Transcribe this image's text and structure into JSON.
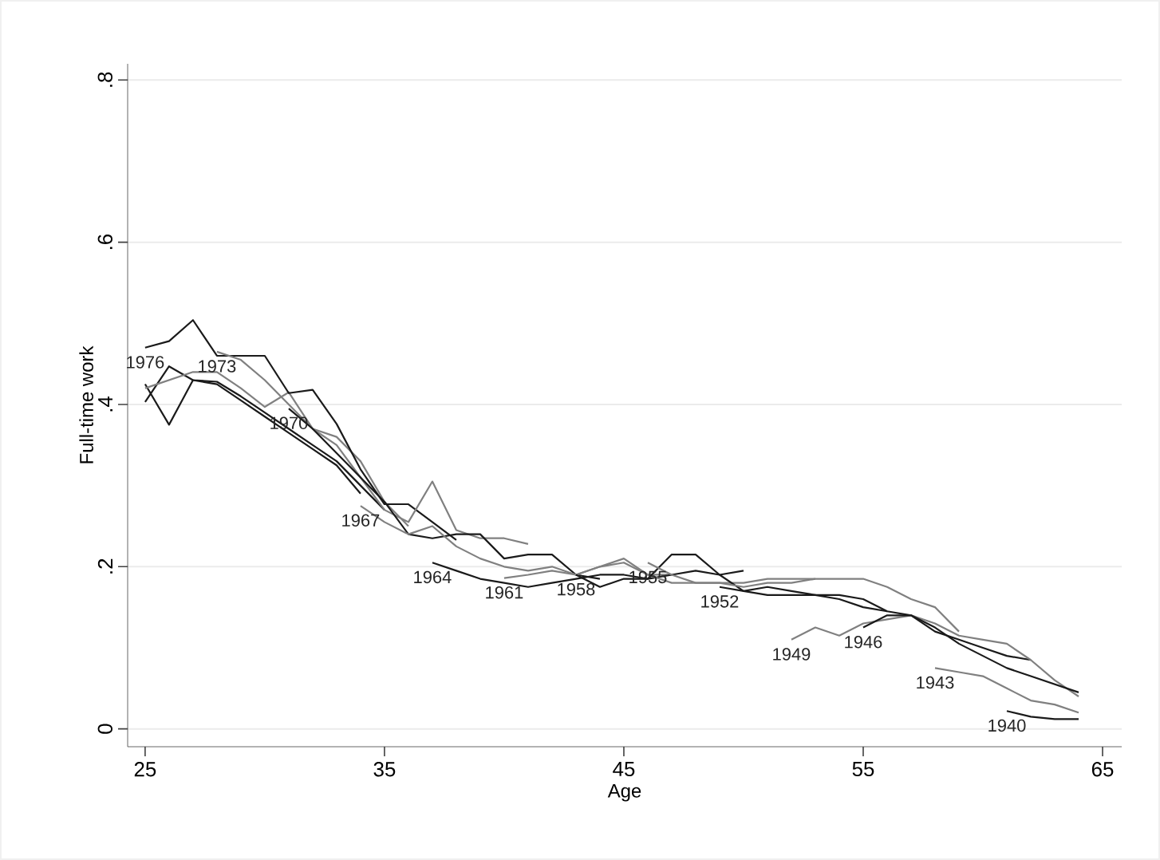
{
  "chart_data": {
    "type": "line",
    "xlabel": "Age",
    "ylabel": "Full-time work",
    "xlim": [
      24.27,
      65.8
    ],
    "ylim": [
      -0.022,
      0.82
    ],
    "xticks": [
      25,
      35,
      45,
      55,
      65
    ],
    "yticks": [
      {
        "value": 0,
        "label": "0"
      },
      {
        "value": 0.2,
        "label": ".2"
      },
      {
        "value": 0.4,
        "label": ".4"
      },
      {
        "value": 0.6,
        "label": ".6"
      },
      {
        "value": 0.8,
        "label": ".8"
      }
    ],
    "grid": "y",
    "series": [
      {
        "color": "#1a1a1a",
        "x": [
          25,
          26,
          27,
          28,
          29,
          30,
          31,
          32,
          33,
          34,
          35
        ],
        "values": [
          0.403,
          0.447,
          0.43,
          0.428,
          0.41,
          0.39,
          0.37,
          0.35,
          0.33,
          0.3,
          0.27
        ]
      },
      {
        "color": "#1a1a1a",
        "x": [
          25,
          26,
          27,
          28,
          29,
          30,
          31,
          32,
          33,
          34
        ],
        "values": [
          0.425,
          0.375,
          0.43,
          0.425,
          0.405,
          0.385,
          0.365,
          0.345,
          0.325,
          0.29
        ]
      },
      {
        "color": "#808080",
        "x": [
          25,
          26,
          27,
          28,
          29,
          30,
          31,
          32,
          33,
          34,
          35,
          36
        ],
        "values": [
          0.42,
          0.43,
          0.44,
          0.44,
          0.42,
          0.397,
          0.415,
          0.37,
          0.36,
          0.33,
          0.28,
          0.25
        ]
      },
      {
        "name": "1976",
        "color": "#1a1a1a",
        "x": [
          25,
          26,
          27,
          28,
          29,
          30,
          31,
          32,
          33,
          34,
          35,
          36,
          37,
          38
        ],
        "values": [
          0.47,
          0.478,
          0.504,
          0.46,
          0.46,
          0.46,
          0.414,
          0.418,
          0.376,
          0.32,
          0.277,
          0.277,
          0.255,
          0.233
        ]
      },
      {
        "name": "1973",
        "color": "#808080",
        "x": [
          28,
          29,
          30,
          31,
          32,
          33,
          34,
          35,
          36,
          37,
          38,
          39,
          40,
          41
        ],
        "values": [
          0.465,
          0.455,
          0.43,
          0.4,
          0.37,
          0.35,
          0.31,
          0.27,
          0.255,
          0.305,
          0.245,
          0.235,
          0.235,
          0.228
        ]
      },
      {
        "name": "1970",
        "color": "#1a1a1a",
        "x": [
          31,
          32,
          33,
          34,
          35,
          36,
          37,
          38,
          39,
          40,
          41,
          42,
          43,
          44
        ],
        "values": [
          0.395,
          0.37,
          0.34,
          0.31,
          0.28,
          0.24,
          0.235,
          0.24,
          0.24,
          0.21,
          0.215,
          0.215,
          0.19,
          0.185
        ]
      },
      {
        "name": "1967",
        "color": "#808080",
        "x": [
          34,
          35,
          36,
          37,
          38,
          39,
          40,
          41,
          42,
          43,
          44,
          45,
          46,
          47
        ],
        "values": [
          0.275,
          0.255,
          0.24,
          0.25,
          0.225,
          0.21,
          0.2,
          0.195,
          0.2,
          0.19,
          0.2,
          0.21,
          0.19,
          0.19
        ]
      },
      {
        "name": "1964",
        "color": "#1a1a1a",
        "x": [
          37,
          38,
          39,
          40,
          41,
          42,
          43,
          44,
          45,
          46,
          47,
          48,
          49,
          50
        ],
        "values": [
          0.205,
          0.195,
          0.185,
          0.18,
          0.175,
          0.18,
          0.185,
          0.19,
          0.19,
          0.185,
          0.19,
          0.195,
          0.19,
          0.195
        ]
      },
      {
        "name": "1961",
        "color": "#808080",
        "x": [
          40,
          41,
          42,
          43,
          44,
          45,
          46,
          47,
          48,
          49,
          50,
          51,
          52,
          53
        ],
        "values": [
          0.186,
          0.19,
          0.195,
          0.19,
          0.2,
          0.205,
          0.19,
          0.18,
          0.18,
          0.18,
          0.18,
          0.185,
          0.185,
          0.185
        ]
      },
      {
        "name": "1958",
        "color": "#1a1a1a",
        "x": [
          43,
          44,
          45,
          46,
          47,
          48,
          49,
          50,
          51,
          52,
          53,
          54,
          55,
          56
        ],
        "values": [
          0.19,
          0.175,
          0.185,
          0.185,
          0.215,
          0.215,
          0.19,
          0.17,
          0.165,
          0.165,
          0.165,
          0.16,
          0.15,
          0.145
        ]
      },
      {
        "name": "1955",
        "color": "#808080",
        "x": [
          46,
          47,
          48,
          49,
          50,
          51,
          52,
          53,
          54,
          55,
          56,
          57,
          58,
          59
        ],
        "values": [
          0.205,
          0.19,
          0.18,
          0.18,
          0.175,
          0.18,
          0.18,
          0.185,
          0.185,
          0.185,
          0.175,
          0.16,
          0.15,
          0.12
        ]
      },
      {
        "name": "1952",
        "color": "#1a1a1a",
        "x": [
          49,
          50,
          51,
          52,
          53,
          54,
          55,
          56,
          57,
          58,
          59,
          60,
          61,
          62
        ],
        "values": [
          0.175,
          0.17,
          0.175,
          0.17,
          0.165,
          0.165,
          0.16,
          0.145,
          0.14,
          0.12,
          0.11,
          0.1,
          0.09,
          0.085
        ]
      },
      {
        "name": "1949",
        "color": "#808080",
        "x": [
          52,
          53,
          54,
          55,
          56,
          57,
          58,
          59,
          60,
          61,
          62,
          63,
          64
        ],
        "values": [
          0.11,
          0.125,
          0.115,
          0.13,
          0.135,
          0.14,
          0.13,
          0.115,
          0.11,
          0.105,
          0.085,
          0.06,
          0.04
        ]
      },
      {
        "name": "1946",
        "color": "#1a1a1a",
        "x": [
          55,
          56,
          57,
          58,
          59,
          60,
          61,
          62,
          63,
          64
        ],
        "values": [
          0.125,
          0.14,
          0.14,
          0.125,
          0.105,
          0.09,
          0.075,
          0.065,
          0.055,
          0.045
        ]
      },
      {
        "name": "1943",
        "color": "#808080",
        "x": [
          58,
          59,
          60,
          61,
          62,
          63,
          64
        ],
        "values": [
          0.075,
          0.07,
          0.065,
          0.05,
          0.035,
          0.03,
          0.02
        ]
      },
      {
        "name": "1940",
        "color": "#1a1a1a",
        "x": [
          61,
          62,
          63,
          64
        ],
        "values": [
          0.022,
          0.015,
          0.012,
          0.012
        ]
      }
    ]
  }
}
